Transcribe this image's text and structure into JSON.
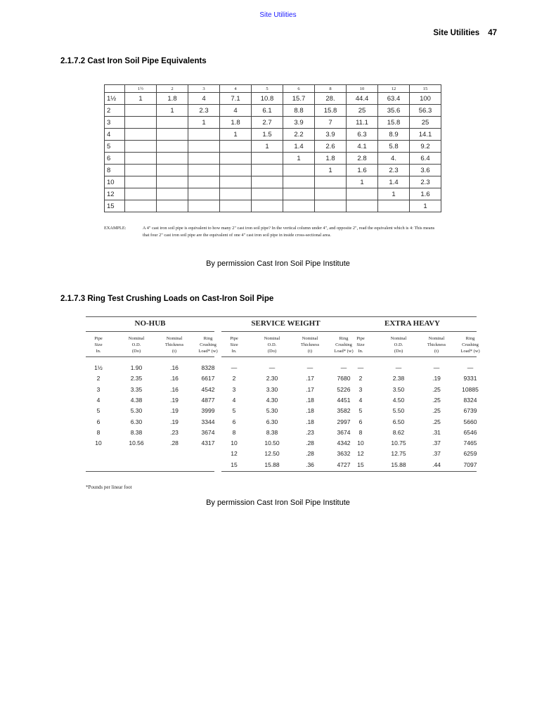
{
  "header": {
    "link": "Site Utilities",
    "running_title": "Site Utilities",
    "page_number": "47"
  },
  "section1": {
    "heading": "2.1.7.2 Cast Iron Soil Pipe Equivalents",
    "columns": [
      "1½",
      "2",
      "3",
      "4",
      "5",
      "6",
      "8",
      "10",
      "12",
      "15"
    ],
    "rows": [
      {
        "size": "1½",
        "values": [
          "1",
          "1.8",
          "4",
          "7.1",
          "10.8",
          "15.7",
          "28.",
          "44.4",
          "63.4",
          "100"
        ]
      },
      {
        "size": "2",
        "values": [
          "",
          "1",
          "2.3",
          "4",
          "6.1",
          "8.8",
          "15.8",
          "25",
          "35.6",
          "56.3"
        ]
      },
      {
        "size": "3",
        "values": [
          "",
          "",
          "1",
          "1.8",
          "2.7",
          "3.9",
          "7",
          "11.1",
          "15.8",
          "25"
        ]
      },
      {
        "size": "4",
        "values": [
          "",
          "",
          "",
          "1",
          "1.5",
          "2.2",
          "3.9",
          "6.3",
          "8.9",
          "14.1"
        ]
      },
      {
        "size": "5",
        "values": [
          "",
          "",
          "",
          "",
          "1",
          "1.4",
          "2.6",
          "4.1",
          "5.8",
          "9.2"
        ]
      },
      {
        "size": "6",
        "values": [
          "",
          "",
          "",
          "",
          "",
          "1",
          "1.8",
          "2.8",
          "4.",
          "6.4"
        ]
      },
      {
        "size": "8",
        "values": [
          "",
          "",
          "",
          "",
          "",
          "",
          "1",
          "1.6",
          "2.3",
          "3.6"
        ]
      },
      {
        "size": "10",
        "values": [
          "",
          "",
          "",
          "",
          "",
          "",
          "",
          "1",
          "1.4",
          "2.3"
        ]
      },
      {
        "size": "12",
        "values": [
          "",
          "",
          "",
          "",
          "",
          "",
          "",
          "",
          "1",
          "1.6"
        ]
      },
      {
        "size": "15",
        "values": [
          "",
          "",
          "",
          "",
          "",
          "",
          "",
          "",
          "",
          "1"
        ]
      }
    ],
    "example_label": "EXAMPLE:",
    "example_text": "A 4\" cast iron soil pipe is equivalent to how many 2\" cast iron soil pipe? In the vertical column under 4\", and opposite 2\", read the equivalent which is 4: This means that four 2\" cast iron soil pipe are the equivalent of one 4\" cast iron soil pipe in inside cross-sectional area.",
    "credit": "By permission Cast Iron Soil Pipe Institute"
  },
  "section2": {
    "heading": "2.1.7.3 Ring Test Crushing Loads on Cast-Iron Soil Pipe",
    "groups": [
      {
        "title": "NO-HUB",
        "rows": [
          [
            "1½",
            "1.90",
            ".16",
            "8328"
          ],
          [
            "2",
            "2.35",
            ".16",
            "6617"
          ],
          [
            "3",
            "3.35",
            ".16",
            "4542"
          ],
          [
            "4",
            "4.38",
            ".19",
            "4877"
          ],
          [
            "5",
            "5.30",
            ".19",
            "3999"
          ],
          [
            "6",
            "6.30",
            ".19",
            "3344"
          ],
          [
            "8",
            "8.38",
            ".23",
            "3674"
          ],
          [
            "10",
            "10.56",
            ".28",
            "4317"
          ],
          [
            "",
            "",
            "",
            ""
          ],
          [
            "",
            "",
            "",
            ""
          ]
        ]
      },
      {
        "title": "SERVICE WEIGHT",
        "rows": [
          [
            "—",
            "—",
            "—",
            "—"
          ],
          [
            "2",
            "2.30",
            ".17",
            "7680"
          ],
          [
            "3",
            "3.30",
            ".17",
            "5226"
          ],
          [
            "4",
            "4.30",
            ".18",
            "4451"
          ],
          [
            "5",
            "5.30",
            ".18",
            "3582"
          ],
          [
            "6",
            "6.30",
            ".18",
            "2997"
          ],
          [
            "8",
            "8.38",
            ".23",
            "3674"
          ],
          [
            "10",
            "10.50",
            ".28",
            "4342"
          ],
          [
            "12",
            "12.50",
            ".28",
            "3632"
          ],
          [
            "15",
            "15.88",
            ".36",
            "4727"
          ]
        ]
      },
      {
        "title": "EXTRA HEAVY",
        "rows": [
          [
            "—",
            "—",
            "—",
            "—"
          ],
          [
            "2",
            "2.38",
            ".19",
            "9331"
          ],
          [
            "3",
            "3.50",
            ".25",
            "10885"
          ],
          [
            "4",
            "4.50",
            ".25",
            "8324"
          ],
          [
            "5",
            "5.50",
            ".25",
            "6739"
          ],
          [
            "6",
            "6.50",
            ".25",
            "5660"
          ],
          [
            "8",
            "8.62",
            ".31",
            "6546"
          ],
          [
            "10",
            "10.75",
            ".37",
            "7465"
          ],
          [
            "12",
            "12.75",
            ".37",
            "6259"
          ],
          [
            "15",
            "15.88",
            ".44",
            "7097"
          ]
        ]
      }
    ],
    "column_headers": [
      "Pipe\nSize\nIn.",
      "Nominal\nO.D.\n(Do)",
      "Nominal\nThickness\n(t)",
      "Ring\nCrushing\nLoad* (w)"
    ],
    "footnote": "*Pounds per linear foot",
    "credit": "By permission Cast Iron Soil Pipe Institute"
  }
}
